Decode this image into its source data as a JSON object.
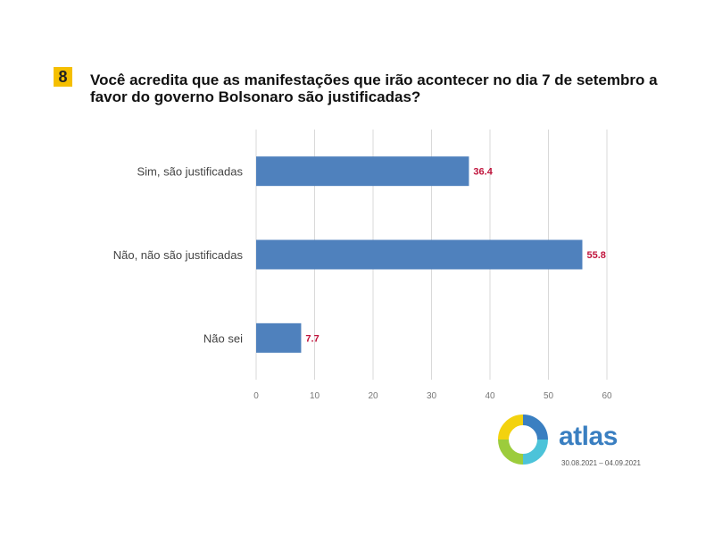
{
  "question": {
    "number": "8",
    "title": "Você acredita que as manifestações que irão acontecer no dia 7 de setembro a favor do governo Bolsonaro são justificadas?"
  },
  "chart_data": {
    "type": "bar",
    "orientation": "horizontal",
    "categories": [
      "Sim, são justificadas",
      "Não, não são justificadas",
      "Não sei"
    ],
    "values": [
      36.4,
      55.8,
      7.7
    ],
    "value_labels": [
      "36.4",
      "55.8",
      "7.7"
    ],
    "xlim": [
      0,
      60
    ],
    "xticks": [
      "0",
      "10",
      "20",
      "30",
      "40",
      "50",
      "60"
    ],
    "grid": true,
    "bar_color": "#4f81bd",
    "label_color": "#c0143c"
  },
  "brand": {
    "name": "atlas",
    "dates": "30.08.2021 – 04.09.2021",
    "colors": [
      "#3a7fc1",
      "#9ccc3c",
      "#f3d20e",
      "#4cc3d9"
    ]
  }
}
